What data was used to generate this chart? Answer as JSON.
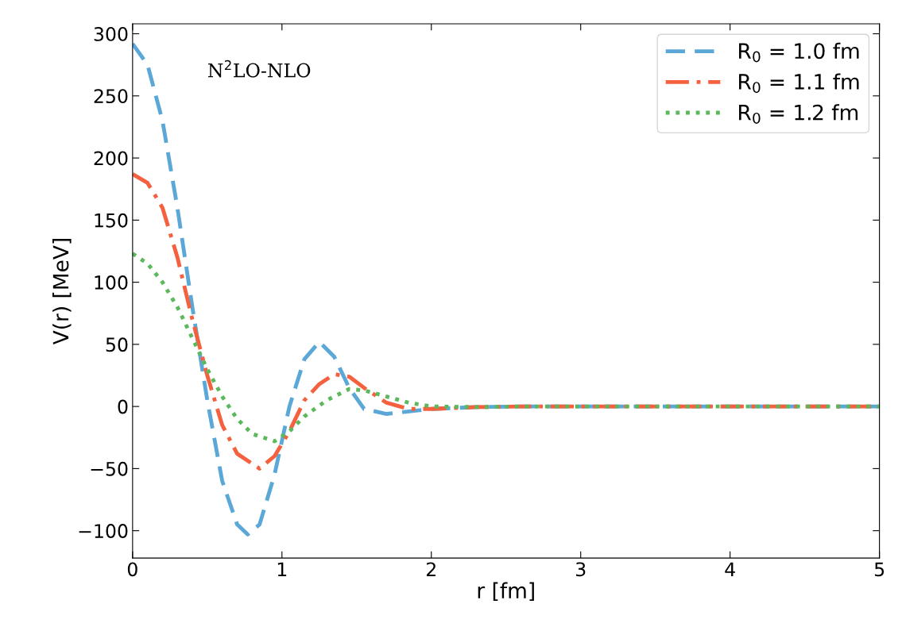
{
  "chart_data": {
    "type": "line",
    "xlabel": "r [fm]",
    "ylabel": "V(r) [MeV]",
    "annotations": [
      "N$^{2}$LO-NLO"
    ],
    "xlim": [
      0,
      5
    ],
    "xticks": [
      0,
      1,
      2,
      3,
      4,
      5
    ],
    "ylim": [
      -122,
      308
    ],
    "yticks": [
      {
        "value": -100,
        "label": "−100"
      },
      {
        "value": -50,
        "label": "−50"
      },
      0,
      50,
      100,
      150,
      200,
      250,
      300
    ],
    "legend": "top right",
    "grid": false,
    "series": [
      {
        "name": "R$_{0}$ = 1.0 fm",
        "color": "#5ba8d8",
        "line_style": "dashed",
        "x": [
          0,
          0.1,
          0.2,
          0.3,
          0.4,
          0.5,
          0.6,
          0.7,
          0.77,
          0.85,
          0.95,
          1.05,
          1.15,
          1.25,
          1.35,
          1.45,
          1.55,
          1.7,
          1.85,
          2.0,
          2.3,
          2.6,
          5
        ],
        "values": [
          292,
          275,
          230,
          160,
          80,
          5,
          -60,
          -95,
          -103,
          -95,
          -55,
          0,
          38,
          52,
          40,
          15,
          -2,
          -6,
          -4,
          -2,
          -0.5,
          0,
          0
        ]
      },
      {
        "name": "R$_{0}$ = 1.1 fm",
        "color": "#f5603f",
        "line_style": "dashdot",
        "x": [
          0,
          0.1,
          0.2,
          0.3,
          0.4,
          0.5,
          0.6,
          0.7,
          0.85,
          0.95,
          1.05,
          1.15,
          1.25,
          1.35,
          1.45,
          1.55,
          1.7,
          1.85,
          2.0,
          2.3,
          2.6,
          5
        ],
        "values": [
          187,
          180,
          160,
          120,
          70,
          25,
          -15,
          -38,
          -50,
          -40,
          -20,
          5,
          18,
          26,
          24,
          15,
          3,
          -2,
          -2,
          -0.5,
          0,
          0
        ]
      },
      {
        "name": "R$_{0}$ = 1.2 fm",
        "color": "#5cb85c",
        "line_style": "dotted",
        "x": [
          0,
          0.1,
          0.2,
          0.3,
          0.4,
          0.5,
          0.6,
          0.7,
          0.8,
          0.95,
          1.05,
          1.15,
          1.3,
          1.45,
          1.55,
          1.7,
          1.85,
          2.0,
          2.3,
          2.6,
          5
        ],
        "values": [
          123,
          115,
          100,
          80,
          55,
          30,
          8,
          -10,
          -22,
          -28,
          -20,
          -8,
          5,
          14,
          13,
          8,
          3,
          0,
          -0.5,
          0,
          0
        ]
      }
    ]
  }
}
